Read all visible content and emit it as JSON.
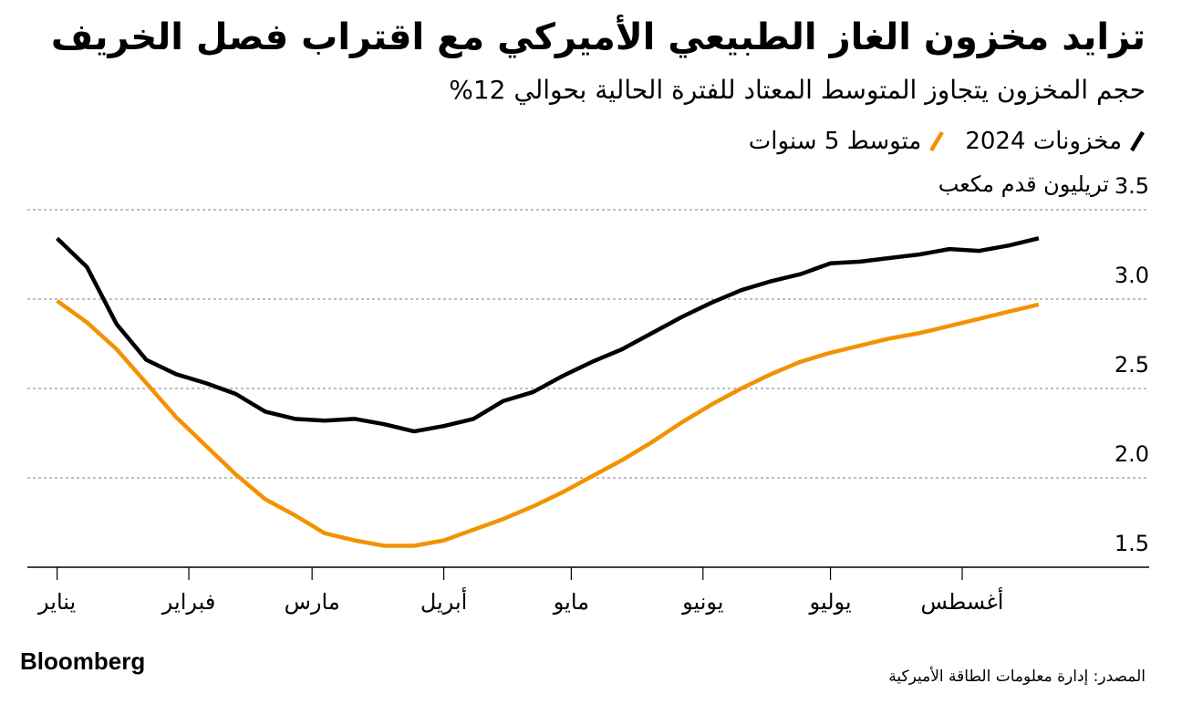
{
  "chart_data": {
    "type": "line",
    "title": "تزايد مخزون الغاز الطبيعي الأميركي مع اقتراب فصل الخريف",
    "subtitle": "حجم المخزون يتجاوز المتوسط المعتاد للفترة الحالية بحوالي 12%",
    "y_label": "تريليون قدم مكعب",
    "source": "المصدر: إدارة معلومات الطاقة الأميركية",
    "brand": "Bloomberg",
    "x": [
      0,
      7,
      14,
      21,
      28,
      35,
      42,
      49,
      56,
      63,
      70,
      77,
      84,
      91,
      98,
      105,
      112,
      119,
      126,
      133,
      140,
      147,
      154,
      161,
      168,
      175,
      182,
      189,
      196,
      203,
      210,
      217,
      224,
      231
    ],
    "xlim": [
      -7,
      257
    ],
    "xticks": [
      {
        "value": 0,
        "label": "يناير"
      },
      {
        "value": 31,
        "label": "فبراير"
      },
      {
        "value": 60,
        "label": "مارس"
      },
      {
        "value": 91,
        "label": "أبريل"
      },
      {
        "value": 121,
        "label": "مايو"
      },
      {
        "value": 152,
        "label": "يونيو"
      },
      {
        "value": 182,
        "label": "يوليو"
      },
      {
        "value": 213,
        "label": "أغسطس"
      }
    ],
    "ylim": [
      1.5,
      3.5
    ],
    "yticks": [
      1.5,
      {
        "value": 2,
        "label": "2.0"
      },
      2.5,
      {
        "value": 3,
        "label": "3.0"
      },
      3.5
    ],
    "grid": true,
    "series": [
      {
        "name": "مخزونات 2024",
        "color": "#000000",
        "values": [
          3.34,
          3.18,
          2.86,
          2.66,
          2.58,
          2.53,
          2.47,
          2.37,
          2.33,
          2.32,
          2.33,
          2.3,
          2.26,
          2.29,
          2.33,
          2.43,
          2.48,
          2.57,
          2.65,
          2.72,
          2.81,
          2.9,
          2.98,
          3.05,
          3.1,
          3.14,
          3.2,
          3.21,
          3.23,
          3.25,
          3.28,
          3.27,
          3.3,
          3.34
        ]
      },
      {
        "name": "متوسط 5 سنوات",
        "color": "#f39200",
        "values": [
          2.99,
          2.87,
          2.72,
          2.53,
          2.34,
          2.18,
          2.02,
          1.88,
          1.79,
          1.69,
          1.65,
          1.62,
          1.62,
          1.65,
          1.71,
          1.77,
          1.84,
          1.92,
          2.01,
          2.1,
          2.2,
          2.31,
          2.41,
          2.5,
          2.58,
          2.65,
          2.7,
          2.74,
          2.78,
          2.81,
          2.85,
          2.89,
          2.93,
          2.97
        ]
      }
    ]
  }
}
